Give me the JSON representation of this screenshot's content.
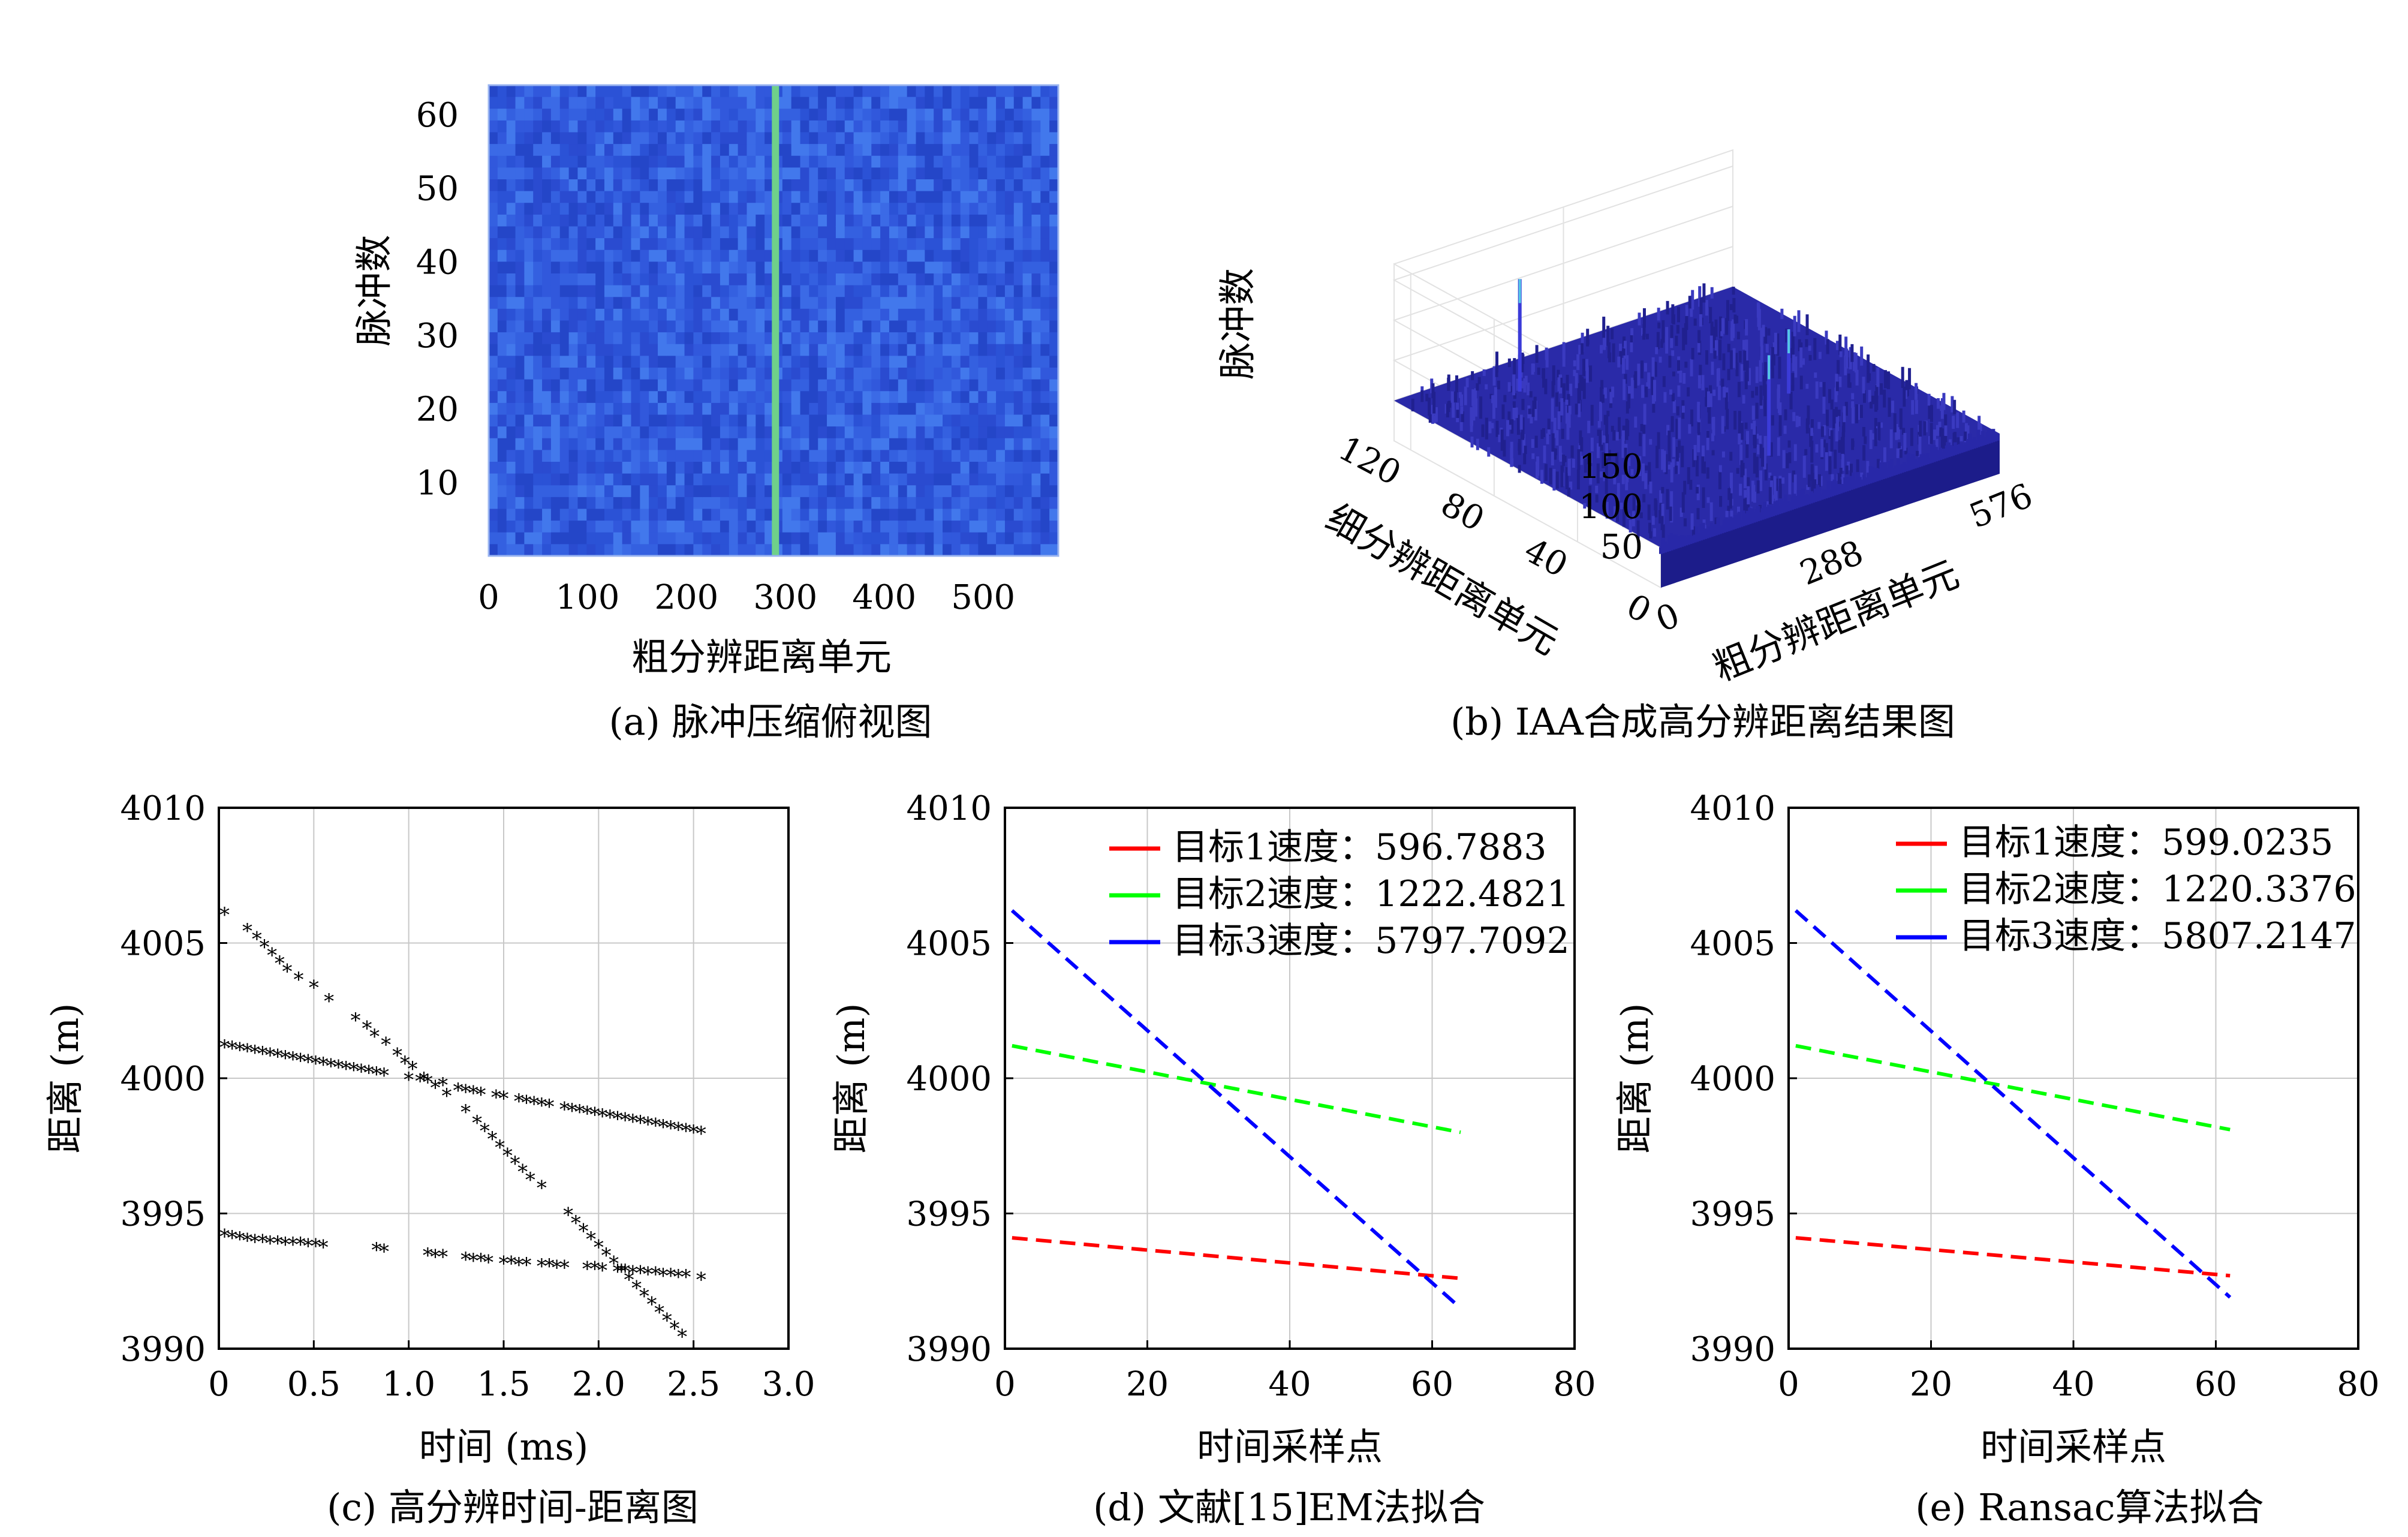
{
  "figure": {
    "captions": {
      "a": "(a) 脉冲压缩俯视图",
      "b": "(b) IAA合成高分辨距离结果图",
      "c": "(c) 高分辨时间-距离图",
      "d": "(d) 文献[15]EM法拟合",
      "e": "(e) Ransac算法拟合"
    }
  },
  "chart_data": [
    {
      "id": "a",
      "type": "heatmap",
      "title": "",
      "xlabel": "粗分辨距离单元",
      "ylabel": "脉冲数",
      "xlim": [
        0,
        576
      ],
      "ylim": [
        0,
        64
      ],
      "xticks": [
        "0",
        "100",
        "200",
        "300",
        "400",
        "500"
      ],
      "yticks": [
        "10",
        "20",
        "30",
        "40",
        "50",
        "60"
      ],
      "colormap": "parula",
      "highlight_column": 290,
      "background_color": "#2f55d8",
      "highlight_color": "#6fd08a"
    },
    {
      "id": "b",
      "type": "surface3d",
      "title": "",
      "zlabel": "脉冲数",
      "xlabel": "粗分辨距离单元",
      "ylabel": "细分辨距离单元",
      "zticks": [
        "50",
        "100",
        "150"
      ],
      "xticks": [
        "0",
        "288",
        "576"
      ],
      "yticks": [
        "0",
        "40",
        "80",
        "120"
      ],
      "noise_floor": 50,
      "peaks": [
        {
          "x": 150,
          "y": 110,
          "z": 190
        },
        {
          "x": 290,
          "y": 30,
          "z": 175
        },
        {
          "x": 430,
          "y": 60,
          "z": 130
        }
      ],
      "surface_color": "#2a2aa8"
    },
    {
      "id": "c",
      "type": "scatter",
      "title": "",
      "xlabel": "时间 (ms)",
      "ylabel": "距离 (m)",
      "xlim": [
        0,
        3.0
      ],
      "ylim": [
        3990,
        4010
      ],
      "xticks": [
        "0",
        "0.5",
        "1.0",
        "1.5",
        "2.0",
        "2.5",
        "3.0"
      ],
      "yticks": [
        "3990",
        "3995",
        "4000",
        "4005",
        "4010"
      ],
      "grid": true,
      "series": [
        {
          "points": [
            [
              0.03,
              4006.1
            ],
            [
              0.15,
              4005.5
            ],
            [
              0.2,
              4005.2
            ],
            [
              0.24,
              4004.9
            ],
            [
              0.28,
              4004.6
            ],
            [
              0.32,
              4004.3
            ],
            [
              0.36,
              4004.0
            ],
            [
              0.42,
              4003.7
            ],
            [
              0.5,
              4003.4
            ],
            [
              0.58,
              4002.9
            ],
            [
              0.72,
              4002.2
            ],
            [
              0.78,
              4001.9
            ],
            [
              0.82,
              4001.6
            ],
            [
              0.88,
              4001.3
            ],
            [
              0.94,
              4000.9
            ],
            [
              0.98,
              4000.6
            ],
            [
              1.02,
              4000.4
            ],
            [
              1.08,
              4000.0
            ],
            [
              1.14,
              3999.7
            ],
            [
              1.2,
              3999.4
            ],
            [
              1.3,
              3998.8
            ],
            [
              1.36,
              3998.4
            ],
            [
              1.4,
              3998.1
            ],
            [
              1.44,
              3997.8
            ],
            [
              1.48,
              3997.5
            ],
            [
              1.52,
              3997.2
            ],
            [
              1.56,
              3996.9
            ],
            [
              1.6,
              3996.6
            ],
            [
              1.64,
              3996.3
            ],
            [
              1.7,
              3996.0
            ],
            [
              1.84,
              3995.0
            ],
            [
              1.88,
              3994.7
            ],
            [
              1.92,
              3994.4
            ],
            [
              1.96,
              3994.1
            ],
            [
              2.0,
              3993.8
            ],
            [
              2.04,
              3993.5
            ],
            [
              2.08,
              3993.2
            ],
            [
              2.12,
              3992.9
            ],
            [
              2.16,
              3992.6
            ],
            [
              2.2,
              3992.3
            ],
            [
              2.24,
              3992.0
            ],
            [
              2.28,
              3991.7
            ],
            [
              2.32,
              3991.4
            ],
            [
              2.36,
              3991.1
            ],
            [
              2.4,
              3990.8
            ],
            [
              2.44,
              3990.5
            ]
          ]
        },
        {
          "points": [
            [
              0.03,
              4001.2
            ],
            [
              0.07,
              4001.15
            ],
            [
              0.11,
              4001.1
            ],
            [
              0.15,
              4001.05
            ],
            [
              0.19,
              4001.0
            ],
            [
              0.23,
              4000.95
            ],
            [
              0.27,
              4000.9
            ],
            [
              0.31,
              4000.85
            ],
            [
              0.35,
              4000.8
            ],
            [
              0.39,
              4000.75
            ],
            [
              0.43,
              4000.7
            ],
            [
              0.47,
              4000.65
            ],
            [
              0.51,
              4000.6
            ],
            [
              0.55,
              4000.55
            ],
            [
              0.59,
              4000.5
            ],
            [
              0.63,
              4000.45
            ],
            [
              0.67,
              4000.4
            ],
            [
              0.71,
              4000.35
            ],
            [
              0.75,
              4000.3
            ],
            [
              0.79,
              4000.25
            ],
            [
              0.83,
              4000.2
            ],
            [
              0.87,
              4000.15
            ],
            [
              1.0,
              4000.0
            ],
            [
              1.06,
              3999.95
            ],
            [
              1.1,
              3999.9
            ],
            [
              1.18,
              3999.8
            ],
            [
              1.26,
              3999.6
            ],
            [
              1.3,
              3999.55
            ],
            [
              1.34,
              3999.5
            ],
            [
              1.38,
              3999.45
            ],
            [
              1.46,
              3999.35
            ],
            [
              1.5,
              3999.3
            ],
            [
              1.58,
              3999.2
            ],
            [
              1.62,
              3999.15
            ],
            [
              1.66,
              3999.1
            ],
            [
              1.7,
              3999.05
            ],
            [
              1.74,
              3999.0
            ],
            [
              1.82,
              3998.9
            ],
            [
              1.86,
              3998.85
            ],
            [
              1.9,
              3998.8
            ],
            [
              1.94,
              3998.75
            ],
            [
              1.98,
              3998.7
            ],
            [
              2.02,
              3998.65
            ],
            [
              2.06,
              3998.6
            ],
            [
              2.1,
              3998.55
            ],
            [
              2.14,
              3998.5
            ],
            [
              2.18,
              3998.45
            ],
            [
              2.22,
              3998.4
            ],
            [
              2.26,
              3998.35
            ],
            [
              2.3,
              3998.3
            ],
            [
              2.34,
              3998.25
            ],
            [
              2.38,
              3998.2
            ],
            [
              2.42,
              3998.15
            ],
            [
              2.46,
              3998.1
            ],
            [
              2.5,
              3998.05
            ],
            [
              2.54,
              3998.0
            ]
          ]
        },
        {
          "points": [
            [
              0.03,
              3994.2
            ],
            [
              0.07,
              3994.15
            ],
            [
              0.11,
              3994.1
            ],
            [
              0.15,
              3994.05
            ],
            [
              0.19,
              3994.0
            ],
            [
              0.23,
              3994.0
            ],
            [
              0.27,
              3993.95
            ],
            [
              0.31,
              3993.95
            ],
            [
              0.35,
              3993.9
            ],
            [
              0.39,
              3993.9
            ],
            [
              0.43,
              3993.9
            ],
            [
              0.47,
              3993.85
            ],
            [
              0.51,
              3993.85
            ],
            [
              0.55,
              3993.8
            ],
            [
              0.83,
              3993.7
            ],
            [
              0.87,
              3993.65
            ],
            [
              1.1,
              3993.5
            ],
            [
              1.14,
              3993.45
            ],
            [
              1.18,
              3993.45
            ],
            [
              1.3,
              3993.35
            ],
            [
              1.34,
              3993.3
            ],
            [
              1.38,
              3993.3
            ],
            [
              1.42,
              3993.25
            ],
            [
              1.5,
              3993.2
            ],
            [
              1.54,
              3993.2
            ],
            [
              1.58,
              3993.15
            ],
            [
              1.62,
              3993.15
            ],
            [
              1.7,
              3993.1
            ],
            [
              1.74,
              3993.1
            ],
            [
              1.78,
              3993.05
            ],
            [
              1.82,
              3993.05
            ],
            [
              1.94,
              3993.0
            ],
            [
              1.98,
              3993.0
            ],
            [
              2.02,
              3992.95
            ],
            [
              2.1,
              3992.9
            ],
            [
              2.14,
              3992.9
            ],
            [
              2.18,
              3992.85
            ],
            [
              2.22,
              3992.85
            ],
            [
              2.26,
              3992.8
            ],
            [
              2.3,
              3992.8
            ],
            [
              2.34,
              3992.75
            ],
            [
              2.38,
              3992.75
            ],
            [
              2.42,
              3992.7
            ],
            [
              2.46,
              3992.7
            ],
            [
              2.54,
              3992.6
            ]
          ]
        }
      ]
    },
    {
      "id": "d",
      "type": "line",
      "title": "",
      "xlabel": "时间采样点",
      "ylabel": "距离 (m)",
      "xlim": [
        0,
        80
      ],
      "ylim": [
        3990,
        4010
      ],
      "xticks": [
        "0",
        "20",
        "40",
        "60",
        "80"
      ],
      "yticks": [
        "3990",
        "3995",
        "4000",
        "4005",
        "4010"
      ],
      "grid": true,
      "legend_position": "top-right",
      "series": [
        {
          "name": "目标1速度：596.7883",
          "color": "#ff0000",
          "x": [
            1,
            64
          ],
          "y": [
            3994.1,
            3992.6
          ]
        },
        {
          "name": "目标2速度：1222.4821",
          "color": "#00ff00",
          "x": [
            1,
            64
          ],
          "y": [
            4001.2,
            3998.0
          ]
        },
        {
          "name": "目标3速度：5797.7092",
          "color": "#0000ff",
          "x": [
            1,
            64
          ],
          "y": [
            4006.2,
            3991.5
          ]
        }
      ]
    },
    {
      "id": "e",
      "type": "line",
      "title": "",
      "xlabel": "时间采样点",
      "ylabel": "距离 (m)",
      "xlim": [
        0,
        80
      ],
      "ylim": [
        3990,
        4010
      ],
      "xticks": [
        "0",
        "20",
        "40",
        "60",
        "80"
      ],
      "yticks": [
        "3990",
        "3995",
        "4000",
        "4005",
        "4010"
      ],
      "grid": true,
      "legend_position": "top-right",
      "series": [
        {
          "name": "目标1速度：599.0235",
          "color": "#ff0000",
          "x": [
            1,
            62
          ],
          "y": [
            3994.1,
            3992.7
          ]
        },
        {
          "name": "目标2速度：1220.3376",
          "color": "#00ff00",
          "x": [
            1,
            62
          ],
          "y": [
            4001.2,
            3998.1
          ]
        },
        {
          "name": "目标3速度：5807.2147",
          "color": "#0000ff",
          "x": [
            1,
            62
          ],
          "y": [
            4006.2,
            3991.9
          ]
        }
      ]
    }
  ]
}
